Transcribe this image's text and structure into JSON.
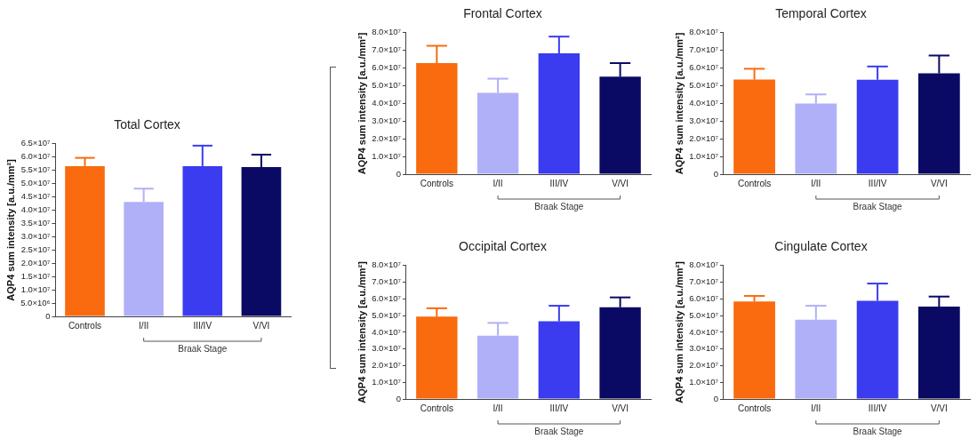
{
  "chart_data": [
    {
      "type": "bar",
      "title": "Total Cortex",
      "ylabel": "AQP4 sum intensity [a.u./mm²]",
      "categories": [
        "Controls",
        "I/II",
        "III/IV",
        "V/VI"
      ],
      "values": [
        56600000,
        43100000,
        56600000,
        56200000
      ],
      "errors": [
        [
          56600000,
          59700000
        ],
        [
          43100000,
          48100000
        ],
        [
          56600000,
          64300000
        ],
        [
          56200000,
          60900000
        ]
      ],
      "colors": [
        "#f96b0e",
        "#b0b0f8",
        "#3b3bf0",
        "#0a0a64"
      ],
      "ylim": [
        0,
        65000000
      ],
      "yticks": [
        {
          "value": 0,
          "label": "0"
        },
        {
          "value": 5000000,
          "label": "5.0×10⁶"
        },
        {
          "value": 10000000,
          "label": "1.0×10⁷"
        },
        {
          "value": 15000000,
          "label": "1.5×10⁷"
        },
        {
          "value": 20000000,
          "label": "2.0×10⁷"
        },
        {
          "value": 25000000,
          "label": "2.5×10⁷"
        },
        {
          "value": 30000000,
          "label": "3.0×10⁷"
        },
        {
          "value": 35000000,
          "label": "3.5×10⁷"
        },
        {
          "value": 40000000,
          "label": "4.0×10⁷"
        },
        {
          "value": 45000000,
          "label": "4.5×10⁷"
        },
        {
          "value": 50000000,
          "label": "5.0×10⁷"
        },
        {
          "value": 55000000,
          "label": "5.5×10⁷"
        },
        {
          "value": 60000000,
          "label": "6.0×10⁷"
        },
        {
          "value": 65000000,
          "label": "6.5×10⁷"
        }
      ],
      "annotations": [
        "Braak Stage"
      ],
      "legend": false
    },
    {
      "type": "bar",
      "title": "Frontal Cortex",
      "ylabel": "AQP4 sum intensity [a.u./mm²]",
      "categories": [
        "Controls",
        "I/II",
        "III/IV",
        "V/VI"
      ],
      "values": [
        62800000,
        46000000,
        68300000,
        55100000
      ],
      "errors": [
        [
          62800000,
          72600000
        ],
        [
          46000000,
          54000000
        ],
        [
          68300000,
          77800000
        ],
        [
          55100000,
          62800000
        ]
      ],
      "colors": [
        "#f96b0e",
        "#b0b0f8",
        "#3b3bf0",
        "#0a0a64"
      ],
      "ylim": [
        0,
        80000000
      ],
      "yticks": [
        {
          "value": 0,
          "label": "0"
        },
        {
          "value": 10000000,
          "label": "1.0×10⁷"
        },
        {
          "value": 20000000,
          "label": "2.0×10⁷"
        },
        {
          "value": 30000000,
          "label": "3.0×10⁷"
        },
        {
          "value": 40000000,
          "label": "4.0×10⁷"
        },
        {
          "value": 50000000,
          "label": "5.0×10⁷"
        },
        {
          "value": 60000000,
          "label": "6.0×10⁷"
        },
        {
          "value": 70000000,
          "label": "7.0×10⁷"
        },
        {
          "value": 80000000,
          "label": "8.0×10⁷"
        }
      ],
      "annotations": [
        "Braak Stage"
      ],
      "legend": false
    },
    {
      "type": "bar",
      "title": "Temporal Cortex",
      "ylabel": "AQP4 sum intensity [a.u./mm²]",
      "categories": [
        "Controls",
        "I/II",
        "III/IV",
        "V/VI"
      ],
      "values": [
        53500000,
        39900000,
        53400000,
        57000000
      ],
      "errors": [
        [
          53500000,
          59600000
        ],
        [
          39900000,
          45100000
        ],
        [
          53400000,
          60900000
        ],
        [
          57000000,
          67100000
        ]
      ],
      "colors": [
        "#f96b0e",
        "#b0b0f8",
        "#3b3bf0",
        "#0a0a64"
      ],
      "ylim": [
        0,
        80000000
      ],
      "yticks": [
        {
          "value": 0,
          "label": "0"
        },
        {
          "value": 10000000,
          "label": "1.0×10⁷"
        },
        {
          "value": 20000000,
          "label": "2.0×10⁷"
        },
        {
          "value": 30000000,
          "label": "3.0×10⁷"
        },
        {
          "value": 40000000,
          "label": "4.0×10⁷"
        },
        {
          "value": 50000000,
          "label": "5.0×10⁷"
        },
        {
          "value": 60000000,
          "label": "6.0×10⁷"
        },
        {
          "value": 70000000,
          "label": "7.0×10⁷"
        },
        {
          "value": 80000000,
          "label": "8.0×10⁷"
        }
      ],
      "annotations": [
        "Braak Stage"
      ],
      "legend": false
    },
    {
      "type": "bar",
      "title": "Occipital Cortex",
      "ylabel": "AQP4 sum intensity [a.u./mm²]",
      "categories": [
        "Controls",
        "I/II",
        "III/IV",
        "V/VI"
      ],
      "values": [
        49400000,
        38000000,
        46600000,
        55000000
      ],
      "errors": [
        [
          49400000,
          54400000
        ],
        [
          38000000,
          45600000
        ],
        [
          46600000,
          55900000
        ],
        [
          55000000,
          60900000
        ]
      ],
      "colors": [
        "#f96b0e",
        "#b0b0f8",
        "#3b3bf0",
        "#0a0a64"
      ],
      "ylim": [
        0,
        80000000
      ],
      "yticks": [
        {
          "value": 0,
          "label": "0"
        },
        {
          "value": 10000000,
          "label": "1.0×10⁷"
        },
        {
          "value": 20000000,
          "label": "2.0×10⁷"
        },
        {
          "value": 30000000,
          "label": "3.0×10⁷"
        },
        {
          "value": 40000000,
          "label": "4.0×10⁷"
        },
        {
          "value": 50000000,
          "label": "5.0×10⁷"
        },
        {
          "value": 60000000,
          "label": "6.0×10⁷"
        },
        {
          "value": 70000000,
          "label": "7.0×10⁷"
        },
        {
          "value": 80000000,
          "label": "8.0×10⁷"
        }
      ],
      "annotations": [
        "Braak Stage"
      ],
      "legend": false
    },
    {
      "type": "bar",
      "title": "Cingulate Cortex",
      "ylabel": "AQP4 sum intensity [a.u./mm²]",
      "categories": [
        "Controls",
        "I/II",
        "III/IV",
        "V/VI"
      ],
      "values": [
        58500000,
        47500000,
        58900000,
        55400000
      ],
      "errors": [
        [
          58500000,
          61800000
        ],
        [
          47500000,
          55900000
        ],
        [
          58900000,
          69200000
        ],
        [
          55400000,
          61400000
        ]
      ],
      "colors": [
        "#f96b0e",
        "#b0b0f8",
        "#3b3bf0",
        "#0a0a64"
      ],
      "ylim": [
        0,
        80000000
      ],
      "yticks": [
        {
          "value": 0,
          "label": "0"
        },
        {
          "value": 10000000,
          "label": "1.0×10⁷"
        },
        {
          "value": 20000000,
          "label": "2.0×10⁷"
        },
        {
          "value": 30000000,
          "label": "3.0×10⁷"
        },
        {
          "value": 40000000,
          "label": "4.0×10⁷"
        },
        {
          "value": 50000000,
          "label": "5.0×10⁷"
        },
        {
          "value": 60000000,
          "label": "6.0×10⁷"
        },
        {
          "value": 70000000,
          "label": "7.0×10⁷"
        },
        {
          "value": 80000000,
          "label": "8.0×10⁷"
        }
      ],
      "annotations": [
        "Braak Stage"
      ],
      "legend": false
    }
  ]
}
